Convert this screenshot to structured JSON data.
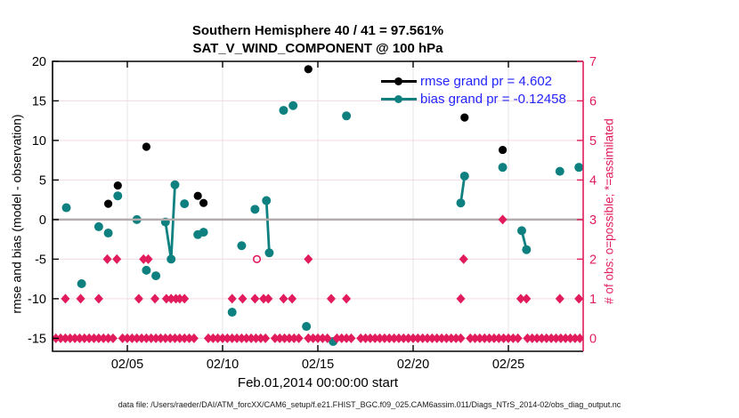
{
  "title": {
    "line1": "Southern Hemisphere 40 / 41 = 97.561%",
    "line2": "SAT_V_WIND_COMPONENT @ 100 hPa"
  },
  "legend": {
    "items": [
      {
        "label": "rmse grand pr = 4.602",
        "series": "rmse"
      },
      {
        "label": "bias grand pr = -0.12458",
        "series": "bias"
      }
    ]
  },
  "footer": {
    "text": "data file: /Users/raeder/DAI/ATM_forcXX/CAM6_setup/f.e21.FHIST_BGC.f09_025.CAM6assim.011/Diags_NTrS_2014-02/obs_diag_output.nc"
  },
  "colors": {
    "rmse": "#000000",
    "bias": "#0e8080",
    "obs": "#e21c5c",
    "grid_h": "#f5d9e2",
    "grid_v": "#eae3e7",
    "zero_line": "#b3abac",
    "legend_text": "#2424ff",
    "axis": "#000000",
    "footer_text": "#1a1a1a"
  },
  "chart_data": {
    "type": "scatter",
    "title": "Southern Hemisphere 40 / 41 = 97.561% | SAT_V_WIND_COMPONENT @ 100 hPa",
    "x_axis": {
      "label": "Feb.01,2014 00:00:00 start",
      "tick_days": [
        5,
        10,
        15,
        20,
        25
      ],
      "tick_labels": [
        "02/05",
        "02/10",
        "02/15",
        "02/20",
        "02/25"
      ],
      "range_days": [
        1.07,
        28.93
      ],
      "grid": true
    },
    "y_left": {
      "label": "rmse and bias (model - observation)",
      "ticks": [
        20,
        15,
        10,
        5,
        0,
        -5,
        -10,
        -15
      ],
      "range": [
        -16.6,
        20
      ],
      "grid": true,
      "zero_reference_line": 0
    },
    "y_right": {
      "label": "# of obs: o=possible; *=assimilated",
      "ticks": [
        0,
        1,
        2,
        3,
        4,
        5,
        6,
        7
      ],
      "range": [
        0,
        7.05
      ]
    },
    "series": {
      "rmse": {
        "name": "rmse grand pr = 4.602",
        "marker": "filled-circle",
        "points": [
          [
            4.0,
            2.0
          ],
          [
            4.5,
            4.3
          ],
          [
            6.0,
            9.2
          ],
          [
            8.7,
            3.0
          ],
          [
            9.0,
            2.1
          ],
          [
            14.5,
            19.0
          ],
          [
            22.7,
            12.9
          ],
          [
            24.7,
            8.8
          ]
        ]
      },
      "bias": {
        "name": "bias grand pr = -0.12458",
        "marker": "filled-circle",
        "points": [
          [
            1.8,
            1.5
          ],
          [
            2.6,
            -8.1
          ],
          [
            3.5,
            -0.9
          ],
          [
            4.0,
            -1.7
          ],
          [
            4.5,
            3.0
          ],
          [
            5.5,
            0.0
          ],
          [
            6.0,
            -6.4
          ],
          [
            6.5,
            -7.1
          ],
          [
            8.0,
            2.0
          ],
          [
            8.7,
            -1.9
          ],
          [
            9.0,
            -1.6
          ],
          [
            10.5,
            -11.7
          ],
          [
            11.0,
            -3.3
          ],
          [
            11.7,
            1.3
          ],
          [
            13.2,
            13.8
          ],
          [
            13.7,
            14.4
          ],
          [
            14.4,
            -13.5
          ],
          [
            15.8,
            -15.4
          ],
          [
            16.5,
            13.1
          ],
          [
            24.7,
            6.6
          ],
          [
            27.7,
            6.1
          ],
          [
            28.7,
            6.6
          ]
        ],
        "connected_segments": [
          [
            [
              7.0,
              -0.3
            ],
            [
              7.3,
              -5.0
            ],
            [
              7.5,
              4.4
            ]
          ],
          [
            [
              12.3,
              2.4
            ],
            [
              12.45,
              -4.2
            ]
          ],
          [
            [
              22.5,
              2.1
            ],
            [
              22.7,
              5.5
            ]
          ],
          [
            [
              25.7,
              -1.4
            ],
            [
              25.95,
              -3.8
            ]
          ]
        ]
      },
      "obs_count": {
        "name": "# of obs (right axis)",
        "marker": "filled-diamond",
        "points_day_count": [
          [
            24.7,
            3
          ],
          [
            3.95,
            2
          ],
          [
            4.45,
            2
          ],
          [
            5.85,
            2
          ],
          [
            6.1,
            2
          ],
          [
            14.5,
            2
          ],
          [
            22.65,
            2
          ],
          [
            1.75,
            1
          ],
          [
            2.55,
            1
          ],
          [
            3.5,
            1
          ],
          [
            5.6,
            1
          ],
          [
            6.45,
            1
          ],
          [
            7.05,
            1
          ],
          [
            7.3,
            1
          ],
          [
            7.55,
            1
          ],
          [
            7.75,
            1
          ],
          [
            8.0,
            1
          ],
          [
            10.5,
            1
          ],
          [
            11.05,
            1
          ],
          [
            11.7,
            1
          ],
          [
            12.15,
            1
          ],
          [
            12.4,
            1
          ],
          [
            13.2,
            1
          ],
          [
            13.65,
            1
          ],
          [
            15.7,
            1
          ],
          [
            16.5,
            1
          ],
          [
            22.5,
            1
          ],
          [
            25.65,
            1
          ],
          [
            25.95,
            1
          ],
          [
            27.7,
            1
          ],
          [
            28.7,
            1
          ]
        ],
        "possible_only_hollow_circles_day_count": [
          [
            11.8,
            2
          ]
        ],
        "zero_count_runs_days": [
          [
            1.25,
            2.0
          ],
          [
            2.25,
            3.0
          ],
          [
            3.25,
            4.25
          ],
          [
            4.75,
            5.5
          ],
          [
            5.75,
            6.5
          ],
          [
            6.75,
            7.5
          ],
          [
            7.75,
            8.5
          ],
          [
            9.25,
            10.0
          ],
          [
            10.25,
            11.0
          ],
          [
            11.25,
            12.25
          ],
          [
            12.75,
            13.5
          ],
          [
            13.75,
            14.0
          ],
          [
            14.5,
            15.5
          ],
          [
            16.0,
            16.75
          ],
          [
            17.25,
            21.5
          ],
          [
            21.75,
            22.5
          ],
          [
            23.0,
            24.5
          ],
          [
            24.75,
            25.5
          ],
          [
            26.0,
            27.0
          ],
          [
            27.25,
            28.0
          ],
          [
            28.25,
            28.75
          ]
        ],
        "marker_step_days": 0.25
      }
    }
  }
}
